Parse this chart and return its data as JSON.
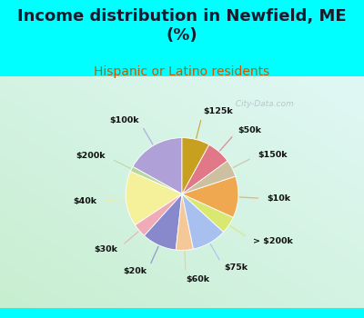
{
  "title": "Income distribution in Newfield, ME\n(%)",
  "subtitle": "Hispanic or Latino residents",
  "labels": [
    "$100k",
    "$200k",
    "$40k",
    "$30k",
    "$20k",
    "$60k",
    "$75k",
    "> $200k",
    "$10k",
    "$150k",
    "$50k",
    "$125k"
  ],
  "sizes": [
    17,
    1.5,
    16,
    4,
    10,
    5,
    10,
    5,
    12,
    5,
    7,
    8
  ],
  "colors": [
    "#b0a0d8",
    "#b8d8a0",
    "#f5f09a",
    "#f0aab8",
    "#8888cc",
    "#f5c898",
    "#a8c0f0",
    "#d8e870",
    "#f0a850",
    "#ccc0a0",
    "#e07888",
    "#c8a020"
  ],
  "bg_top_color": "#00ffff",
  "chart_bg_color1": "#c8f0e8",
  "chart_bg_color2": "#d8f0d0",
  "watermark": "  City-Data.com",
  "title_color": "#1a1a2e",
  "subtitle_color": "#cc5500",
  "startangle": 90
}
